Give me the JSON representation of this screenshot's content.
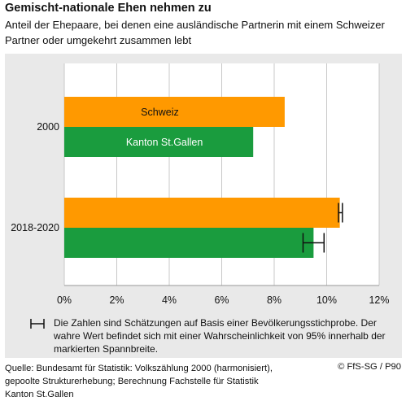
{
  "header": {
    "title": "Gemischt-nationale Ehen nehmen zu",
    "subtitle": "Anteil der Ehepaare, bei denen eine ausländische Partnerin mit einem Schweizer Partner oder umgekehrt zusammen lebt"
  },
  "chart_data": {
    "type": "bar",
    "orientation": "horizontal",
    "categories": [
      "2000",
      "2018-2020"
    ],
    "series": [
      {
        "name": "Schweiz",
        "color": "#ff9900",
        "values": [
          8.4,
          10.5
        ],
        "error": [
          null,
          [
            10.45,
            10.6
          ]
        ]
      },
      {
        "name": "Kanton St.Gallen",
        "color": "#1a9c3e",
        "values": [
          7.2,
          9.5
        ],
        "error": [
          null,
          [
            9.1,
            9.9
          ]
        ]
      }
    ],
    "series_labels_inside_bars": true,
    "xlim": [
      0,
      12
    ],
    "xticks": [
      "0%",
      "2%",
      "4%",
      "6%",
      "8%",
      "10%",
      "12%"
    ],
    "xtick_values": [
      0,
      2,
      4,
      6,
      8,
      10,
      12
    ],
    "grid": "vertical",
    "background": "#e9e9e9"
  },
  "note": {
    "text": "Die Zahlen sind Schätzungen auf Basis einer Bevölkerungsstichprobe. Der wahre Wert befindet sich mit einer Wahrscheinlichkeit von 95% innerhalb der markierten Spannbreite.",
    "icon": "error-bar-icon"
  },
  "footer": {
    "source": "Quelle: Bundesamt für Statistik: Volkszählung 2000 (harmonisiert), gepoolte Strukturerhebung; Berechnung Fachstelle für Statistik Kanton St.Gallen",
    "copyright": "© FfS-SG / P90"
  }
}
